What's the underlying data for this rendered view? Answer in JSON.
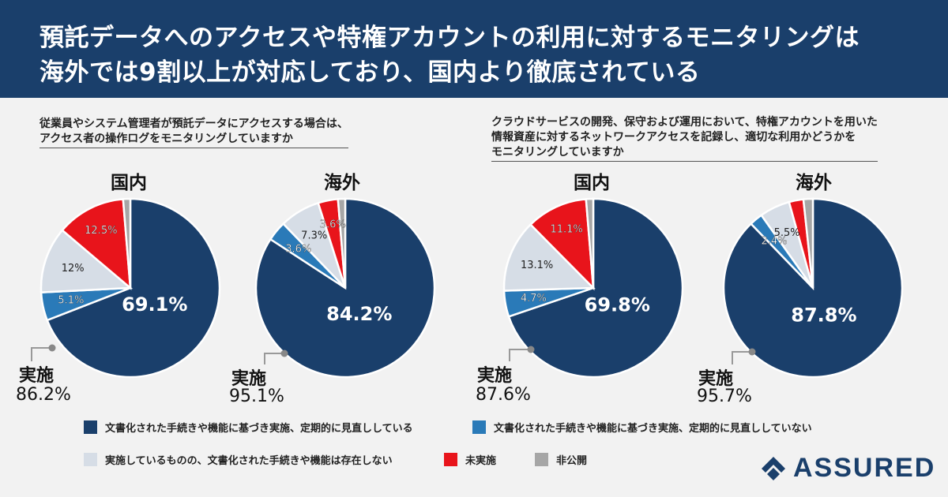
{
  "header": {
    "line1": "預託データへのアクセスや特権アカウントの利用に対するモニタリングは",
    "line2": "海外では9割以上が対応しており、国内より徹底されている"
  },
  "questions": {
    "q1_line1": "従業員やシステム管理者が預託データにアクセスする場合は、",
    "q1_line2": "アクセス者の操作ログをモニタリングしていますか",
    "q2_line1": "クラウドサービスの開発、保守および運用において、特権アカウントを用いた",
    "q2_line2": "情報資産に対するネットワークアクセスを記録し、適切な利用かどうかを",
    "q2_line3": "モニタリングしていますか"
  },
  "implementation_label": "実施",
  "colors": {
    "documented_reviewed": "#1a3f6b",
    "documented_not_reviewed": "#2a7ab8",
    "no_documentation": "#d6dde6",
    "not_implemented": "#e8141b",
    "undisclosed": "#a6a6a6"
  },
  "chart_data": [
    {
      "type": "pie",
      "title": "国内",
      "question": "q1",
      "implemented_total": "86.2%",
      "slices": [
        {
          "name": "文書化された手続きや機能に基づき実施、定期的に見直ししている",
          "value": 69.1,
          "label": "69.1%"
        },
        {
          "name": "文書化された手続きや機能に基づき実施、定期的に見直ししていない",
          "value": 5.1,
          "label": "5.1%"
        },
        {
          "name": "実施しているものの、文書化された手続きや機能は存在しない",
          "value": 12.0,
          "label": "12%"
        },
        {
          "name": "未実施",
          "value": 12.5,
          "label": "12.5%"
        },
        {
          "name": "非公開",
          "value": 1.3,
          "label": ""
        }
      ]
    },
    {
      "type": "pie",
      "title": "海外",
      "question": "q1",
      "implemented_total": "95.1%",
      "slices": [
        {
          "name": "文書化された手続きや機能に基づき実施、定期的に見直ししている",
          "value": 84.2,
          "label": "84.2%"
        },
        {
          "name": "文書化された手続きや機能に基づき実施、定期的に見直ししていない",
          "value": 3.6,
          "label": "3.6%"
        },
        {
          "name": "実施しているものの、文書化された手続きや機能は存在しない",
          "value": 7.3,
          "label": "7.3%"
        },
        {
          "name": "未実施",
          "value": 3.6,
          "label": "3.6%"
        },
        {
          "name": "非公開",
          "value": 1.3,
          "label": ""
        }
      ]
    },
    {
      "type": "pie",
      "title": "国内",
      "question": "q2",
      "implemented_total": "87.6%",
      "slices": [
        {
          "name": "文書化された手続きや機能に基づき実施、定期的に見直ししている",
          "value": 69.8,
          "label": "69.8%"
        },
        {
          "name": "文書化された手続きや機能に基づき実施、定期的に見直ししていない",
          "value": 4.7,
          "label": "4.7%"
        },
        {
          "name": "実施しているものの、文書化された手続きや機能は存在しない",
          "value": 13.1,
          "label": "13.1%"
        },
        {
          "name": "未実施",
          "value": 11.1,
          "label": "11.1%"
        },
        {
          "name": "非公開",
          "value": 1.3,
          "label": ""
        }
      ]
    },
    {
      "type": "pie",
      "title": "海外",
      "question": "q2",
      "implemented_total": "95.7%",
      "slices": [
        {
          "name": "文書化された手続きや機能に基づき実施、定期的に見直ししている",
          "value": 87.8,
          "label": "87.8%"
        },
        {
          "name": "文書化された手続きや機能に基づき実施、定期的に見直ししていない",
          "value": 2.4,
          "label": "2.4%"
        },
        {
          "name": "実施しているものの、文書化された手続きや機能は存在しない",
          "value": 5.5,
          "label": "5.5%"
        },
        {
          "name": "未実施",
          "value": 2.6,
          "label": ""
        },
        {
          "name": "非公開",
          "value": 1.7,
          "label": ""
        }
      ]
    }
  ],
  "legend": [
    {
      "label": "文書化された手続きや機能に基づき実施、定期的に見直ししている",
      "color": "#1a3f6b"
    },
    {
      "label": "文書化された手続きや機能に基づき実施、定期的に見直ししていない",
      "color": "#2a7ab8"
    },
    {
      "label": "実施しているものの、文書化された手続きや機能は存在しない",
      "color": "#d6dde6"
    },
    {
      "label": "未実施",
      "color": "#e8141b"
    },
    {
      "label": "非公開",
      "color": "#a6a6a6"
    }
  ],
  "logo": {
    "text": "ASSURED"
  }
}
